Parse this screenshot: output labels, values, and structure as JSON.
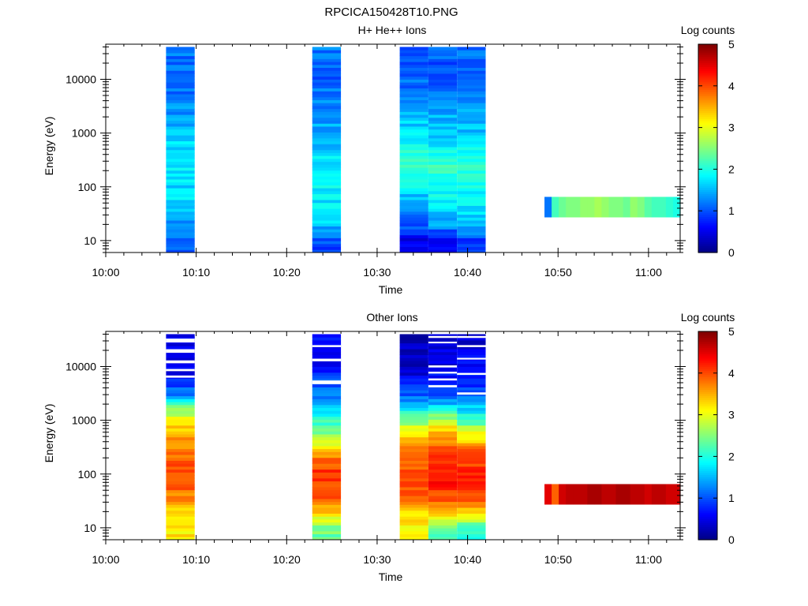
{
  "figure_title": "RPCICA150428T10.PNG",
  "chart_data": [
    {
      "type": "heatmap",
      "title": "H+ He++ Ions",
      "xlabel": "Time",
      "ylabel": "Energy (eV)",
      "x_ticks": [
        "10:00",
        "10:10",
        "10:20",
        "10:30",
        "10:40",
        "10:50",
        "11:00"
      ],
      "xlim_minutes": [
        0,
        63.5
      ],
      "y_scale": "log",
      "ylim": [
        6,
        45000
      ],
      "y_ticks": [
        "10",
        "100",
        "1000",
        "10000"
      ],
      "colorbar": {
        "label": "Log counts",
        "range": [
          0,
          5
        ],
        "ticks": [
          "0",
          "1",
          "2",
          "3",
          "4",
          "5"
        ],
        "colormap": "jet"
      },
      "grid": false,
      "blocks": [
        {
          "t_start": "10:06:40",
          "t_end": "10:09:50",
          "e_min": 6,
          "e_max": 40000,
          "profile": [
            [
              10,
              1.1
            ],
            [
              20,
              1.4
            ],
            [
              30,
              1.5
            ],
            [
              60,
              1.7
            ],
            [
              100,
              1.7
            ],
            [
              300,
              1.8
            ],
            [
              1000,
              1.6
            ],
            [
              3000,
              1.3
            ],
            [
              10000,
              1.1
            ],
            [
              40000,
              1.2
            ]
          ]
        },
        {
          "t_start": "10:22:50",
          "t_end": "10:26:00",
          "e_min": 6,
          "e_max": 40000,
          "profile": [
            [
              10,
              1.0
            ],
            [
              20,
              1.6
            ],
            [
              30,
              1.7
            ],
            [
              60,
              1.8
            ],
            [
              100,
              1.8
            ],
            [
              300,
              1.8
            ],
            [
              1000,
              1.5
            ],
            [
              3000,
              1.3
            ],
            [
              10000,
              1.1
            ],
            [
              40000,
              1.2
            ]
          ]
        },
        {
          "t_start": "10:32:30",
          "t_end": "10:35:40",
          "e_min": 6,
          "e_max": 40000,
          "profile": [
            [
              10,
              0.5
            ],
            [
              20,
              1.1
            ],
            [
              30,
              1.3
            ],
            [
              60,
              1.5
            ],
            [
              100,
              1.8
            ],
            [
              300,
              2.2
            ],
            [
              1000,
              1.7
            ],
            [
              3000,
              1.5
            ],
            [
              10000,
              1.1
            ],
            [
              40000,
              1.0
            ]
          ]
        },
        {
          "t_start": "10:35:40",
          "t_end": "10:38:50",
          "e_min": 6,
          "e_max": 40000,
          "profile": [
            [
              10,
              0.5
            ],
            [
              20,
              1.4
            ],
            [
              30,
              1.6
            ],
            [
              60,
              1.8
            ],
            [
              100,
              2.0
            ],
            [
              300,
              2.1
            ],
            [
              1000,
              1.6
            ],
            [
              3000,
              1.4
            ],
            [
              10000,
              1.0
            ],
            [
              40000,
              1.1
            ]
          ]
        },
        {
          "t_start": "10:38:50",
          "t_end": "10:42:00",
          "e_min": 6,
          "e_max": 40000,
          "profile": [
            [
              10,
              0.9
            ],
            [
              20,
              1.5
            ],
            [
              30,
              1.7
            ],
            [
              60,
              1.8
            ],
            [
              100,
              2.0
            ],
            [
              300,
              2.0
            ],
            [
              1000,
              1.6
            ],
            [
              3000,
              1.4
            ],
            [
              10000,
              1.2
            ],
            [
              40000,
              1.1
            ]
          ]
        },
        {
          "t_start": "10:48:30",
          "t_end": "11:03:30",
          "e_min": 27,
          "e_max": 65,
          "cols": [
            1.2,
            2.2,
            2.4,
            2.5,
            2.5,
            2.6,
            2.6,
            2.7,
            2.6,
            2.5,
            2.5,
            2.4,
            2.6,
            2.5,
            2.3,
            2.2,
            2.2,
            2.1,
            2.0
          ]
        }
      ]
    },
    {
      "type": "heatmap",
      "title": "Other Ions",
      "xlabel": "Time",
      "ylabel": "Energy (eV)",
      "x_ticks": [
        "10:00",
        "10:10",
        "10:20",
        "10:30",
        "10:40",
        "10:50",
        "11:00"
      ],
      "xlim_minutes": [
        0,
        63.5
      ],
      "y_scale": "log",
      "ylim": [
        6,
        45000
      ],
      "y_ticks": [
        "10",
        "100",
        "1000",
        "10000"
      ],
      "colorbar": {
        "label": "Log counts",
        "range": [
          0,
          5
        ],
        "ticks": [
          "0",
          "1",
          "2",
          "3",
          "4",
          "5"
        ],
        "colormap": "jet"
      },
      "grid": false,
      "blocks": [
        {
          "t_start": "10:06:40",
          "t_end": "10:09:50",
          "e_min": 6,
          "e_max": 40000,
          "gaps": [
            [
              33000,
              28000
            ],
            [
              21000,
              18000
            ],
            [
              13000,
              11500
            ],
            [
              9000,
              8200
            ],
            [
              6800,
              6200
            ]
          ],
          "profile": [
            [
              6,
              3.2
            ],
            [
              10,
              3.2
            ],
            [
              20,
              3.4
            ],
            [
              30,
              3.6
            ],
            [
              60,
              4.0
            ],
            [
              100,
              4.1
            ],
            [
              300,
              3.8
            ],
            [
              600,
              3.5
            ],
            [
              1000,
              3.1
            ],
            [
              2000,
              2.3
            ],
            [
              3000,
              1.3
            ],
            [
              6000,
              0.7
            ],
            [
              10000,
              0.5
            ],
            [
              40000,
              0.5
            ]
          ]
        },
        {
          "t_start": "10:22:50",
          "t_end": "10:26:00",
          "e_min": 6,
          "e_max": 40000,
          "gaps": [
            [
              25000,
              23000
            ],
            [
              14000,
              12500
            ],
            [
              5500,
              4700
            ]
          ],
          "profile": [
            [
              6,
              2.3
            ],
            [
              10,
              2.5
            ],
            [
              20,
              3.4
            ],
            [
              30,
              3.8
            ],
            [
              60,
              4.1
            ],
            [
              100,
              4.2
            ],
            [
              200,
              3.8
            ],
            [
              300,
              3.2
            ],
            [
              600,
              2.5
            ],
            [
              1000,
              2.1
            ],
            [
              3000,
              1.2
            ],
            [
              10000,
              0.7
            ],
            [
              40000,
              0.6
            ]
          ]
        },
        {
          "t_start": "10:32:30",
          "t_end": "10:35:40",
          "e_min": 6,
          "e_max": 40000,
          "gaps": [],
          "profile": [
            [
              6,
              3.1
            ],
            [
              10,
              3.1
            ],
            [
              20,
              3.4
            ],
            [
              30,
              3.7
            ],
            [
              60,
              4.0
            ],
            [
              100,
              4.0
            ],
            [
              300,
              3.8
            ],
            [
              600,
              3.2
            ],
            [
              1000,
              2.5
            ],
            [
              2000,
              1.6
            ],
            [
              3000,
              1.1
            ],
            [
              6000,
              0.6
            ],
            [
              10000,
              0.4
            ],
            [
              40000,
              0.3
            ]
          ]
        },
        {
          "t_start": "10:35:40",
          "t_end": "10:38:50",
          "e_min": 6,
          "e_max": 40000,
          "gaps": [
            [
              37000,
              34000
            ],
            [
              29000,
              27000
            ],
            [
              10500,
              9600
            ],
            [
              8000,
              7400
            ],
            [
              6000,
              5500
            ],
            [
              4500,
              4100
            ]
          ],
          "profile": [
            [
              6,
              2.2
            ],
            [
              10,
              2.3
            ],
            [
              20,
              3.5
            ],
            [
              30,
              3.9
            ],
            [
              60,
              4.2
            ],
            [
              100,
              4.3
            ],
            [
              300,
              3.9
            ],
            [
              600,
              3.4
            ],
            [
              1000,
              2.8
            ],
            [
              2000,
              1.6
            ],
            [
              3000,
              1.0
            ],
            [
              10000,
              0.5
            ],
            [
              40000,
              0.4
            ]
          ]
        },
        {
          "t_start": "10:38:50",
          "t_end": "10:42:00",
          "e_min": 6,
          "e_max": 40000,
          "gaps": [
            [
              37000,
              34000
            ],
            [
              25000,
              23000
            ],
            [
              14500,
              13500
            ],
            [
              7600,
              7000
            ],
            [
              3300,
              3000
            ]
          ],
          "profile": [
            [
              6,
              2.0
            ],
            [
              10,
              2.1
            ],
            [
              20,
              3.4
            ],
            [
              30,
              3.9
            ],
            [
              60,
              4.2
            ],
            [
              100,
              4.3
            ],
            [
              300,
              3.8
            ],
            [
              600,
              3.0
            ],
            [
              1000,
              2.2
            ],
            [
              2000,
              1.5
            ],
            [
              3000,
              1.0
            ],
            [
              10000,
              0.6
            ],
            [
              40000,
              0.4
            ]
          ]
        },
        {
          "t_start": "10:48:30",
          "t_end": "11:03:30",
          "e_min": 27,
          "e_max": 65,
          "cols": [
            4.5,
            3.9,
            4.6,
            4.7,
            4.7,
            4.7,
            4.8,
            4.8,
            4.7,
            4.7,
            4.8,
            4.8,
            4.7,
            4.7,
            4.6,
            4.7,
            4.7,
            4.6,
            4.6
          ]
        }
      ]
    }
  ]
}
